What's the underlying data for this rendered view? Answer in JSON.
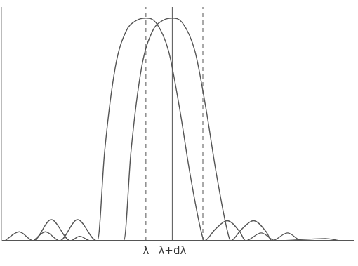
{
  "chart_data": {
    "type": "line",
    "tick_labels": "x",
    "grid": false,
    "xlim": [
      15,
      510
    ],
    "ylim": [
      0,
      1.05
    ],
    "xticks": [
      {
        "value": 218,
        "label": "λ"
      },
      {
        "value": 255,
        "label": "λ+dλ"
      }
    ],
    "yticks": [],
    "series": [
      {
        "color": "#555555",
        "line_style": "solid",
        "x": [
          20,
          40,
          60,
          85,
          112,
          125,
          140,
          150,
          160,
          175,
          190,
          205,
          218,
          232,
          250,
          265,
          280,
          295,
          300,
          315,
          332,
          350,
          358,
          380,
          400,
          470,
          490
        ],
        "values": [
          0,
          0.04,
          0,
          0.095,
          0,
          0.02,
          0,
          0,
          0.4,
          0.78,
          0.94,
          0.99,
          1,
          0.98,
          0.85,
          0.6,
          0.3,
          0.05,
          0,
          0.05,
          0.09,
          0.04,
          0,
          0.035,
          0,
          0.01,
          0
        ]
      },
      {
        "color": "#555555",
        "line_style": "solid",
        "x": [
          60,
          77,
          97,
          122,
          149,
          187,
          197,
          212,
          227,
          242,
          255,
          269,
          287,
          302,
          317,
          332,
          337,
          352,
          369,
          387,
          395,
          417,
          437,
          505
        ],
        "values": [
          0,
          0.04,
          0,
          0.095,
          0,
          0,
          0.4,
          0.78,
          0.94,
          0.99,
          1,
          0.98,
          0.85,
          0.6,
          0.3,
          0.05,
          0,
          0.05,
          0.09,
          0.04,
          0,
          0.035,
          0,
          0
        ]
      }
    ],
    "vertical_lines": [
      {
        "x": 218,
        "line_style": "dashed"
      },
      {
        "x": 255,
        "line_style": "solid"
      },
      {
        "x": 298,
        "line_style": "dashed"
      }
    ]
  }
}
